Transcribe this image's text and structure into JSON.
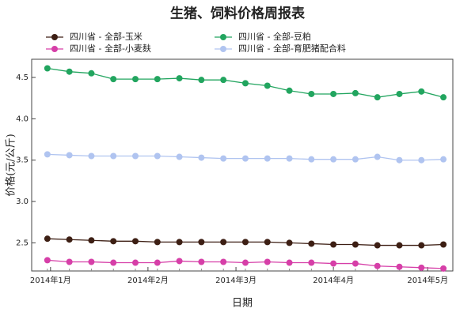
{
  "chart_data": {
    "type": "line",
    "title": "生猪、饲料价格周报表",
    "x_label": "日期",
    "y_label": "价格(元/公斤)",
    "x": [
      -1,
      6,
      13,
      20,
      27,
      34,
      41,
      48,
      55,
      62,
      69,
      76,
      83,
      90,
      97,
      104,
      111,
      118,
      125
    ],
    "xlim": [
      -6,
      128
    ],
    "xticks": [
      {
        "value": 0,
        "label": "2014年1月"
      },
      {
        "value": 31,
        "label": "2014年2月"
      },
      {
        "value": 59,
        "label": "2014年3月"
      },
      {
        "value": 90,
        "label": "2014年4月"
      },
      {
        "value": 120,
        "label": "2014年5月"
      }
    ],
    "ylim": [
      2.16,
      4.72
    ],
    "yticks": [
      2.5,
      {
        "value": 3,
        "label": "3.0"
      },
      3.5,
      {
        "value": 4,
        "label": "4.0"
      },
      4.5
    ],
    "series": [
      {
        "name": "四川省 - 全部-玉米",
        "color": "#3d1f14",
        "values": [
          2.55,
          2.54,
          2.53,
          2.52,
          2.52,
          2.51,
          2.51,
          2.51,
          2.51,
          2.51,
          2.51,
          2.5,
          2.49,
          2.48,
          2.48,
          2.47,
          2.47,
          2.47,
          2.48
        ]
      },
      {
        "name": "四川省 - 全部-豆粕",
        "color": "#22a55f",
        "values": [
          4.61,
          4.57,
          4.55,
          4.48,
          4.48,
          4.48,
          4.49,
          4.47,
          4.47,
          4.43,
          4.4,
          4.34,
          4.3,
          4.3,
          4.31,
          4.26,
          4.3,
          4.33,
          4.26
        ]
      },
      {
        "name": "四川省 - 全部-小麦麸",
        "color": "#d63fa8",
        "values": [
          2.29,
          2.27,
          2.27,
          2.26,
          2.26,
          2.26,
          2.28,
          2.27,
          2.27,
          2.26,
          2.27,
          2.26,
          2.26,
          2.25,
          2.25,
          2.22,
          2.21,
          2.2,
          2.19
        ]
      },
      {
        "name": "四川省 - 全部-育肥猪配合料",
        "color": "#b0c4f0",
        "values": [
          3.57,
          3.56,
          3.55,
          3.55,
          3.55,
          3.55,
          3.54,
          3.53,
          3.52,
          3.52,
          3.52,
          3.52,
          3.51,
          3.51,
          3.51,
          3.54,
          3.5,
          3.5,
          3.51
        ]
      }
    ]
  }
}
